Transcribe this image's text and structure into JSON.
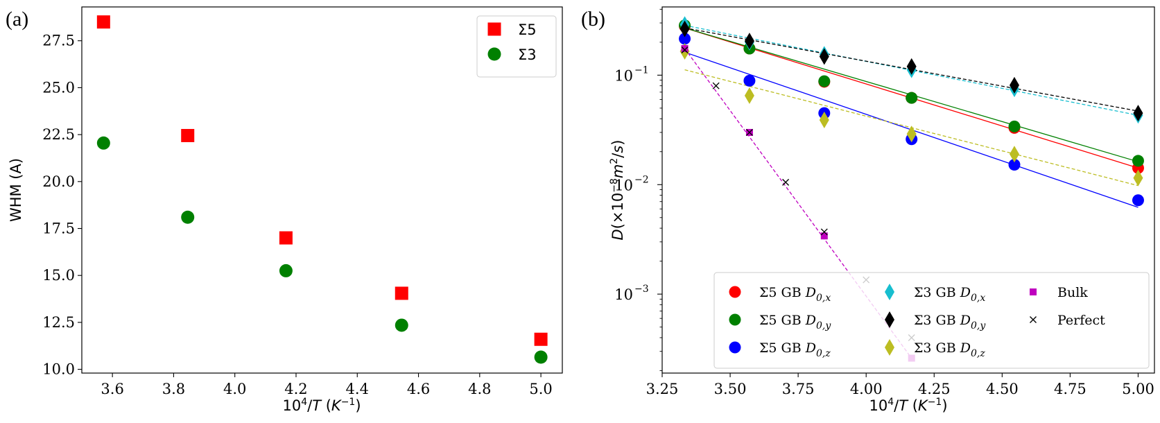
{
  "panels": [
    {
      "id": "a",
      "panel_label": "(a)",
      "chart_data": {
        "type": "scatter",
        "xlabel": "10⁴/T (K⁻¹)",
        "ylabel": "WHM (A)",
        "xlim": [
          3.5,
          5.07
        ],
        "ylim": [
          9.8,
          29.3
        ],
        "yscale": "linear",
        "xticks": [
          3.6,
          3.8,
          4.0,
          4.2,
          4.4,
          4.6,
          4.8,
          5.0
        ],
        "xtick_labels": [
          "3.6",
          "3.8",
          "4.0",
          "4.2",
          "4.4",
          "4.6",
          "4.8",
          "5.0"
        ],
        "yticks": [
          10.0,
          12.5,
          15.0,
          17.5,
          20.0,
          22.5,
          25.0,
          27.5
        ],
        "ytick_labels": [
          "10.0",
          "12.5",
          "15.0",
          "17.5",
          "20.0",
          "22.5",
          "25.0",
          "27.5"
        ],
        "grid": false,
        "legend_position": "upper right",
        "series": [
          {
            "name": "Σ5",
            "marker": "square",
            "color": "#ff0000",
            "x": [
              3.571,
              3.846,
              4.167,
              4.545,
              5.0
            ],
            "y": [
              28.5,
              22.45,
              17.0,
              14.05,
              11.6
            ]
          },
          {
            "name": "Σ3",
            "marker": "circle",
            "color": "#008000",
            "x": [
              3.571,
              3.846,
              4.167,
              4.545,
              5.0
            ],
            "y": [
              22.05,
              18.1,
              15.25,
              12.35,
              10.65
            ]
          }
        ]
      }
    },
    {
      "id": "b",
      "panel_label": "(b)",
      "chart_data": {
        "type": "scatter",
        "xlabel": "10⁴/T (K⁻¹)",
        "ylabel": "D(×10⁻⁸m²/s)",
        "xlim": [
          3.25,
          5.06
        ],
        "ylim": [
          0.00019,
          0.42
        ],
        "yscale": "log",
        "xticks": [
          3.25,
          3.5,
          3.75,
          4.0,
          4.25,
          4.5,
          4.75,
          5.0
        ],
        "xtick_labels": [
          "3.25",
          "3.50",
          "3.75",
          "4.00",
          "4.25",
          "4.50",
          "4.75",
          "5.00"
        ],
        "yticks": [
          0.001,
          0.01,
          0.1
        ],
        "ytick_labels": [
          "10",
          "10",
          "10"
        ],
        "ytick_exponents": [
          "−3",
          "−2",
          "−1"
        ],
        "grid": false,
        "legend_position": "lower right",
        "legend_columns": 3,
        "series": [
          {
            "name": "Σ5 GB D0,x",
            "label_main": "Σ5 GB D",
            "label_sub": "0,x",
            "marker": "circle",
            "color": "#ff0000",
            "x": [
              3.333,
              3.571,
              3.846,
              4.167,
              4.545,
              5.0
            ],
            "y": [
              0.28,
              0.175,
              0.087,
              0.062,
              0.033,
              0.0142
            ],
            "fit": {
              "x": [
                3.333,
                5.0
              ],
              "y": [
                0.27,
                0.0142
              ],
              "style": "solid"
            }
          },
          {
            "name": "Σ5 GB D0,y",
            "label_main": "Σ5 GB D",
            "label_sub": "0,y",
            "marker": "circle",
            "color": "#008000",
            "x": [
              3.333,
              3.571,
              3.846,
              4.167,
              4.545,
              5.0
            ],
            "y": [
              0.285,
              0.175,
              0.088,
              0.062,
              0.034,
              0.0165
            ],
            "fit": {
              "x": [
                3.333,
                5.0
              ],
              "y": [
                0.27,
                0.0162
              ],
              "style": "solid"
            }
          },
          {
            "name": "Σ5 GB D0,z",
            "label_main": "Σ5 GB D",
            "label_sub": "0,z",
            "marker": "circle",
            "color": "#0000ff",
            "x": [
              3.333,
              3.571,
              3.846,
              4.167,
              4.545,
              5.0
            ],
            "y": [
              0.215,
              0.089,
              0.045,
              0.026,
              0.0152,
              0.0072
            ],
            "fit": {
              "x": [
                3.333,
                5.0
              ],
              "y": [
                0.162,
                0.0062
              ],
              "style": "solid"
            }
          },
          {
            "name": "Σ3 GB D0,x",
            "label_main": "Σ3 GB D",
            "label_sub": "0,x",
            "marker": "thin_diamond",
            "color": "#17becf",
            "x": [
              3.333,
              3.571,
              3.846,
              4.167,
              4.545,
              5.0
            ],
            "y": [
              0.29,
              0.2,
              0.155,
              0.112,
              0.075,
              0.043
            ],
            "fit": {
              "x": [
                3.333,
                5.0
              ],
              "y": [
                0.285,
                0.043
              ],
              "style": "dashed"
            }
          },
          {
            "name": "Σ3 GB D0,y",
            "label_main": "Σ3 GB D",
            "label_sub": "0,y",
            "marker": "thin_diamond",
            "color": "#000000",
            "x": [
              3.333,
              3.571,
              3.846,
              4.167,
              4.545,
              5.0
            ],
            "y": [
              0.265,
              0.205,
              0.148,
              0.12,
              0.081,
              0.045
            ],
            "fit": {
              "x": [
                3.333,
                5.0
              ],
              "y": [
                0.27,
                0.047
              ],
              "style": "dashed"
            }
          },
          {
            "name": "Σ3 GB D0,z",
            "label_main": "Σ3 GB D",
            "label_sub": "0,z",
            "marker": "thin_diamond",
            "color": "#bcbd22",
            "x": [
              3.333,
              3.571,
              3.846,
              4.167,
              4.545,
              5.0
            ],
            "y": [
              0.165,
              0.065,
              0.039,
              0.029,
              0.019,
              0.0115
            ],
            "fit": {
              "x": [
                3.333,
                5.0
              ],
              "y": [
                0.112,
                0.0098
              ],
              "style": "dashed"
            }
          },
          {
            "name": "Bulk",
            "label_main": "Bulk",
            "label_sub": "",
            "marker": "square",
            "color": "#bf00bf",
            "x": [
              3.333,
              3.571,
              3.846,
              4.167
            ],
            "y": [
              0.175,
              0.03,
              0.0034,
              0.00026
            ],
            "fit": {
              "x": [
                3.333,
                4.167
              ],
              "y": [
                0.175,
                0.00026
              ],
              "style": "dashed"
            }
          },
          {
            "name": "Perfect",
            "label_main": "Perfect",
            "label_sub": "",
            "marker": "x",
            "color": "#000000",
            "x": [
              3.333,
              3.448,
              3.571,
              3.704,
              3.846,
              4.0,
              4.167
            ],
            "y": [
              0.17,
              0.08,
              0.03,
              0.0105,
              0.0037,
              0.00135,
              0.0004
            ]
          }
        ]
      }
    }
  ]
}
